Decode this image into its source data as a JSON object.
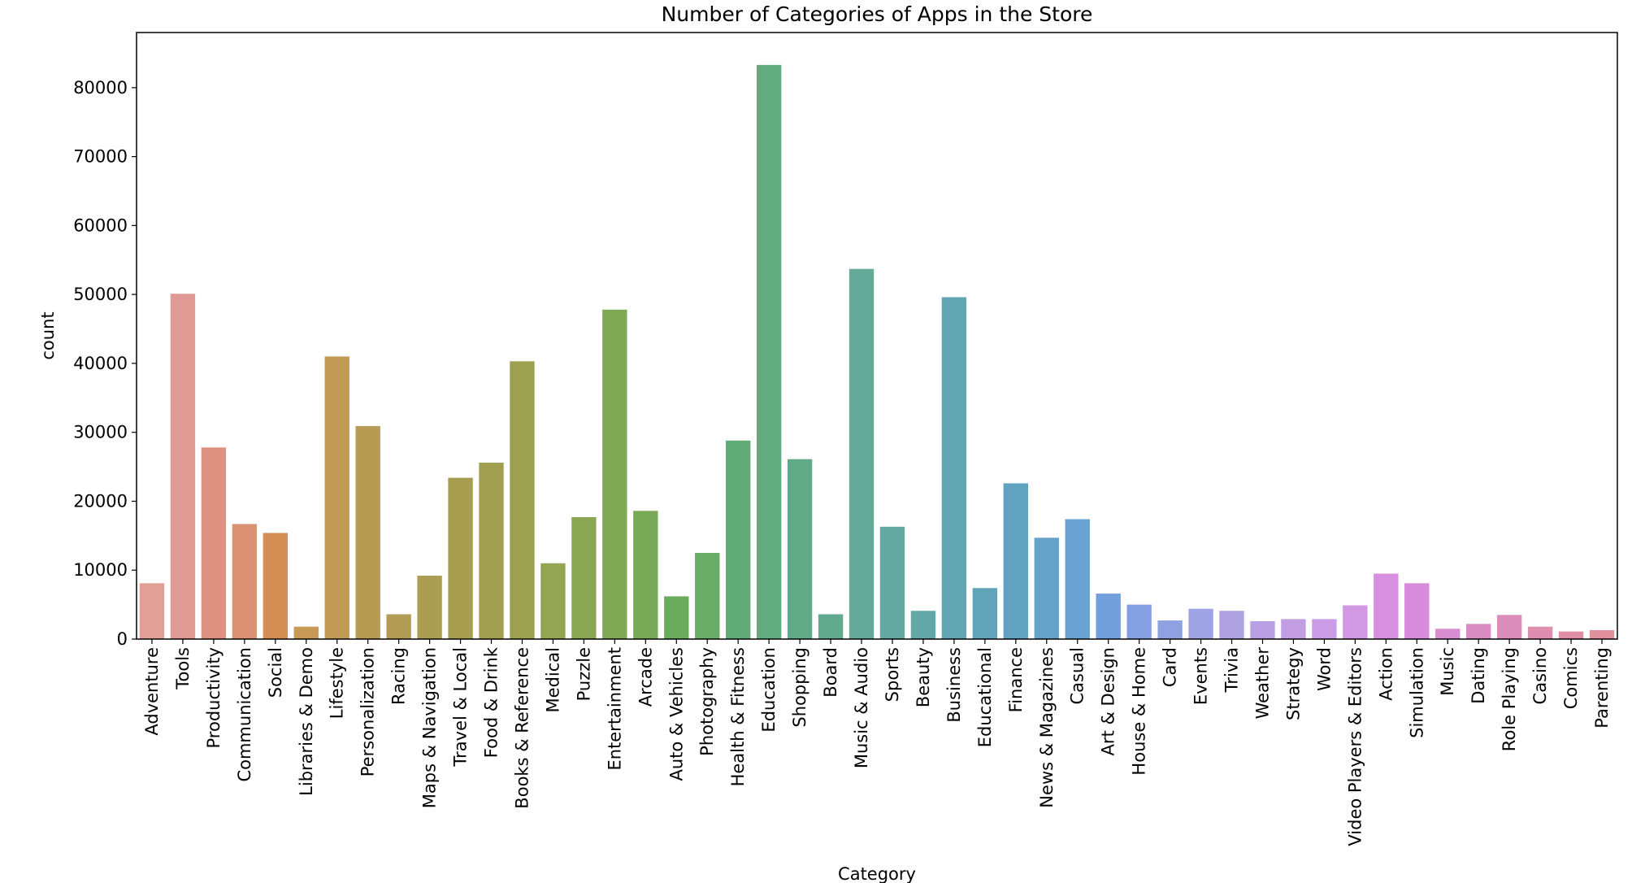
{
  "chart_data": {
    "type": "bar",
    "title": "Number of Categories of Apps in the Store",
    "xlabel": "Category",
    "ylabel": "count",
    "ylim": [
      0,
      88000
    ],
    "yticks": [
      0,
      10000,
      20000,
      30000,
      40000,
      50000,
      60000,
      70000,
      80000
    ],
    "grid": false,
    "categories": [
      "Adventure",
      "Tools",
      "Productivity",
      "Communication",
      "Social",
      "Libraries & Demo",
      "Lifestyle",
      "Personalization",
      "Racing",
      "Maps & Navigation",
      "Travel & Local",
      "Food & Drink",
      "Books & Reference",
      "Medical",
      "Puzzle",
      "Entertainment",
      "Arcade",
      "Auto & Vehicles",
      "Photography",
      "Health & Fitness",
      "Education",
      "Shopping",
      "Board",
      "Music & Audio",
      "Sports",
      "Beauty",
      "Business",
      "Educational",
      "Finance",
      "News & Magazines",
      "Casual",
      "Art & Design",
      "House & Home",
      "Card",
      "Events",
      "Trivia",
      "Weather",
      "Strategy",
      "Word",
      "Video Players & Editors",
      "Action",
      "Simulation",
      "Music",
      "Dating",
      "Role Playing",
      "Casino",
      "Comics",
      "Parenting"
    ],
    "values": [
      8100,
      50100,
      27800,
      16700,
      15400,
      1800,
      41000,
      30900,
      3600,
      9200,
      23400,
      25600,
      40300,
      11000,
      17700,
      47800,
      18600,
      6200,
      12500,
      28800,
      83300,
      26100,
      3600,
      53700,
      16300,
      4100,
      49600,
      7400,
      22600,
      14700,
      17400,
      6600,
      5000,
      2700,
      4400,
      4100,
      2600,
      2900,
      2900,
      4900,
      9500,
      8100,
      1500,
      2200,
      3500,
      1800,
      1100,
      1300
    ],
    "colors": [
      "#e29f96",
      "#e19993",
      "#dd9281",
      "#da9174",
      "#d58e53",
      "#c99a55",
      "#c19b55",
      "#b79b53",
      "#b39d56",
      "#ab9e52",
      "#a69d4f",
      "#a19f50",
      "#9ba14e",
      "#93a453",
      "#8ba653",
      "#81a855",
      "#78a957",
      "#6aab5c",
      "#68ac68",
      "#61ac76",
      "#60ac80",
      "#60aa88",
      "#61aa90",
      "#64aa99",
      "#64a8a1",
      "#63a7a9",
      "#62a5b2",
      "#61a3b9",
      "#62a2c1",
      "#66a1ca",
      "#6aa2d2",
      "#72a0dc",
      "#84a0e2",
      "#90a1e3",
      "#9ea4e6",
      "#aea2e3",
      "#b9a0e4",
      "#c39de2",
      "#cb9de6",
      "#d198e3",
      "#d78fe0",
      "#d88bdb",
      "#d88dd0",
      "#d98cc2",
      "#dc8cb8",
      "#de8fb0",
      "#df8ea5",
      "#e0919c"
    ]
  }
}
